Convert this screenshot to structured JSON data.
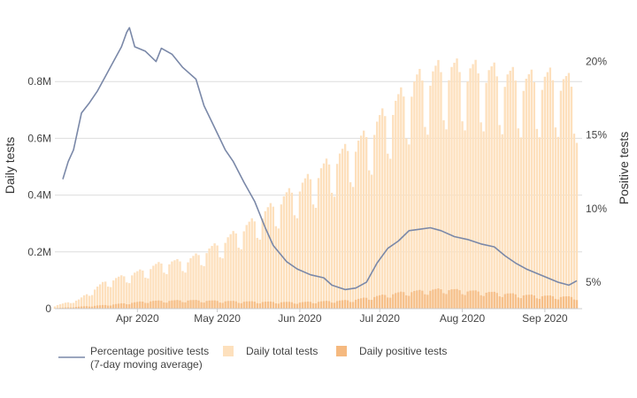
{
  "chart_data": {
    "type": "bar",
    "xlabel": "",
    "ylabel": "Daily tests",
    "y2label": "Positive tests",
    "x_range": [
      "2020-03-01",
      "2020-09-15"
    ],
    "ylim": [
      0,
      1000000
    ],
    "y2lim": [
      3.2,
      22.5
    ],
    "y_ticks": [
      {
        "value": 0,
        "label": "0"
      },
      {
        "value": 200000,
        "label": "0.2M"
      },
      {
        "value": 400000,
        "label": "0.4M"
      },
      {
        "value": 600000,
        "label": "0.6M"
      },
      {
        "value": 800000,
        "label": "0.8M"
      }
    ],
    "y2_ticks": [
      {
        "value": 5,
        "label": "5%"
      },
      {
        "value": 10,
        "label": "10%"
      },
      {
        "value": 15,
        "label": "15%"
      },
      {
        "value": 20,
        "label": "20%"
      }
    ],
    "x_ticks": [
      {
        "value": "2020-04-01",
        "label": "Apr 2020"
      },
      {
        "value": "2020-05-01",
        "label": "May 2020"
      },
      {
        "value": "2020-06-01",
        "label": "Jun 2020"
      },
      {
        "value": "2020-07-01",
        "label": "Jul 2020"
      },
      {
        "value": "2020-08-01",
        "label": "Aug 2020"
      },
      {
        "value": "2020-09-01",
        "label": "Sep 2020"
      }
    ],
    "grid": true,
    "legend_position": "bottom-left",
    "colors": {
      "total": "#fde0bd",
      "positive": "#f5b97f",
      "line": "#7a88a8",
      "grid": "#dddddd"
    },
    "series": [
      {
        "name": "Percentage positive tests\n(7-day moving average)",
        "type": "line",
        "axis": "right",
        "points": [
          [
            "2020-03-04",
            12.0
          ],
          [
            "2020-03-06",
            13.2
          ],
          [
            "2020-03-08",
            14.0
          ],
          [
            "2020-03-11",
            16.5
          ],
          [
            "2020-03-14",
            17.2
          ],
          [
            "2020-03-17",
            18.0
          ],
          [
            "2020-03-20",
            19.0
          ],
          [
            "2020-03-23",
            20.0
          ],
          [
            "2020-03-26",
            21.0
          ],
          [
            "2020-03-28",
            22.0
          ],
          [
            "2020-03-29",
            22.3
          ],
          [
            "2020-03-31",
            21.0
          ],
          [
            "2020-04-04",
            20.7
          ],
          [
            "2020-04-08",
            20.0
          ],
          [
            "2020-04-10",
            20.9
          ],
          [
            "2020-04-14",
            20.5
          ],
          [
            "2020-04-18",
            19.6
          ],
          [
            "2020-04-23",
            18.8
          ],
          [
            "2020-04-26",
            17.0
          ],
          [
            "2020-04-30",
            15.5
          ],
          [
            "2020-05-04",
            14.0
          ],
          [
            "2020-05-07",
            13.2
          ],
          [
            "2020-05-11",
            11.8
          ],
          [
            "2020-05-15",
            10.5
          ],
          [
            "2020-05-19",
            8.7
          ],
          [
            "2020-05-22",
            7.5
          ],
          [
            "2020-05-27",
            6.4
          ],
          [
            "2020-05-31",
            5.9
          ],
          [
            "2020-06-05",
            5.5
          ],
          [
            "2020-06-10",
            5.3
          ],
          [
            "2020-06-13",
            4.8
          ],
          [
            "2020-06-18",
            4.5
          ],
          [
            "2020-06-22",
            4.6
          ],
          [
            "2020-06-26",
            5.0
          ],
          [
            "2020-06-30",
            6.3
          ],
          [
            "2020-07-04",
            7.3
          ],
          [
            "2020-07-08",
            7.8
          ],
          [
            "2020-07-12",
            8.5
          ],
          [
            "2020-07-16",
            8.6
          ],
          [
            "2020-07-20",
            8.7
          ],
          [
            "2020-07-24",
            8.5
          ],
          [
            "2020-07-29",
            8.1
          ],
          [
            "2020-08-03",
            7.9
          ],
          [
            "2020-08-08",
            7.6
          ],
          [
            "2020-08-13",
            7.4
          ],
          [
            "2020-08-17",
            6.8
          ],
          [
            "2020-08-21",
            6.3
          ],
          [
            "2020-08-25",
            5.9
          ],
          [
            "2020-08-29",
            5.6
          ],
          [
            "2020-09-02",
            5.3
          ],
          [
            "2020-09-06",
            5.0
          ],
          [
            "2020-09-10",
            4.8
          ],
          [
            "2020-09-13",
            5.1
          ]
        ]
      },
      {
        "name": "Daily total tests",
        "type": "bar",
        "axis": "left",
        "anchors": [
          [
            "2020-03-01",
            10000
          ],
          [
            "2020-03-10",
            30000
          ],
          [
            "2020-03-20",
            90000
          ],
          [
            "2020-04-01",
            120000
          ],
          [
            "2020-04-10",
            150000
          ],
          [
            "2020-04-20",
            160000
          ],
          [
            "2020-05-01",
            210000
          ],
          [
            "2020-05-15",
            290000
          ],
          [
            "2020-05-25",
            360000
          ],
          [
            "2020-06-05",
            430000
          ],
          [
            "2020-06-15",
            500000
          ],
          [
            "2020-06-25",
            560000
          ],
          [
            "2020-07-05",
            660000
          ],
          [
            "2020-07-15",
            750000
          ],
          [
            "2020-07-25",
            790000
          ],
          [
            "2020-08-10",
            780000
          ],
          [
            "2020-08-25",
            750000
          ],
          [
            "2020-09-05",
            760000
          ],
          [
            "2020-09-13",
            730000
          ]
        ]
      },
      {
        "name": "Daily positive tests",
        "type": "bar",
        "axis": "left",
        "anchors": [
          [
            "2020-03-01",
            1500
          ],
          [
            "2020-03-20",
            12000
          ],
          [
            "2020-04-05",
            25000
          ],
          [
            "2020-04-20",
            28000
          ],
          [
            "2020-05-10",
            24000
          ],
          [
            "2020-06-01",
            21000
          ],
          [
            "2020-06-20",
            28000
          ],
          [
            "2020-07-10",
            55000
          ],
          [
            "2020-07-25",
            65000
          ],
          [
            "2020-08-10",
            55000
          ],
          [
            "2020-08-25",
            45000
          ],
          [
            "2020-09-13",
            38000
          ]
        ]
      }
    ]
  }
}
